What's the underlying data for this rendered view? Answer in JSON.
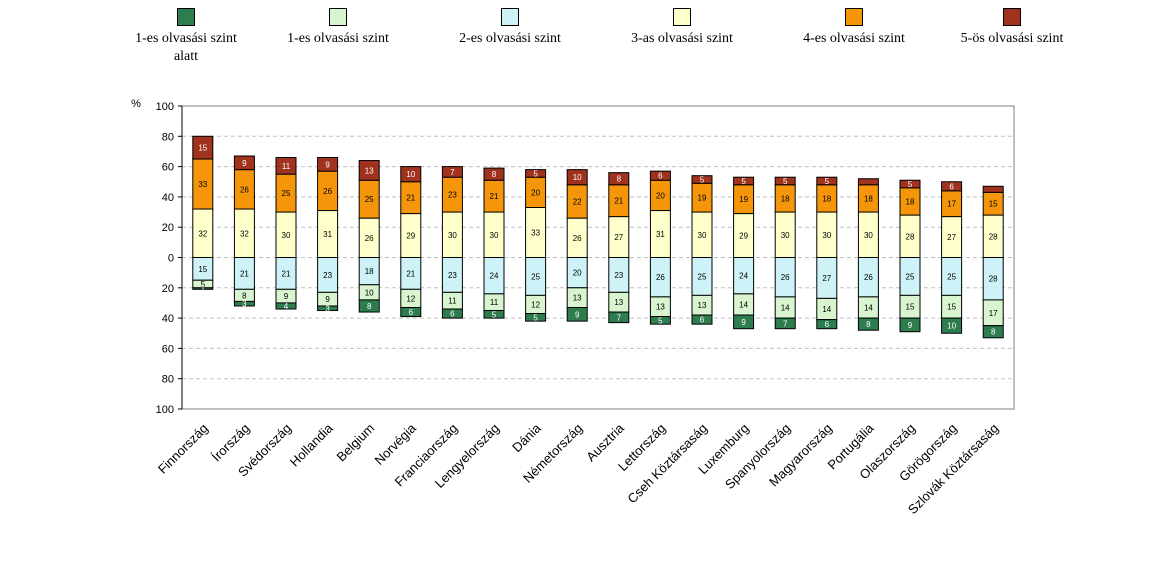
{
  "chart_data": {
    "type": "bar",
    "stacking": "diverging",
    "yunit": "%",
    "ylim": [
      -100,
      100
    ],
    "yticks": [
      -100,
      -80,
      -60,
      -40,
      -20,
      0,
      20,
      40,
      60,
      80,
      100
    ],
    "ytick_labels": [
      "100",
      "80",
      "60",
      "40",
      "20",
      "0",
      "20",
      "40",
      "60",
      "80",
      "100"
    ],
    "grid": true,
    "legend_position": "top",
    "categories": [
      "Finnország",
      "Írország",
      "Svédország",
      "Hollandia",
      "Belgium",
      "Norvégia",
      "Franciaország",
      "Lengyelország",
      "Dánia",
      "Németország",
      "Ausztria",
      "Lettország",
      "Cseh Köztársaság",
      "Luxemburg",
      "Spanyolország",
      "Magyarország",
      "Portugália",
      "Olaszország",
      "Görögország",
      "Szlovák Köztársaság"
    ],
    "series": [
      {
        "name": "1-es olvasási szint alatt",
        "color": "#2e7d4f",
        "direction": "down",
        "values": [
          1,
          3,
          4,
          3,
          8,
          6,
          6,
          5,
          5,
          9,
          7,
          5,
          6,
          9,
          7,
          6,
          8,
          9,
          10,
          8
        ]
      },
      {
        "name": "1-es olvasási szint",
        "color": "#d8f5d0",
        "direction": "down",
        "values": [
          5,
          8,
          9,
          9,
          10,
          12,
          11,
          11,
          12,
          13,
          13,
          13,
          13,
          14,
          14,
          14,
          14,
          15,
          15,
          17
        ]
      },
      {
        "name": "2-es olvasási szint",
        "color": "#cdf3f8",
        "direction": "down",
        "values": [
          15,
          21,
          21,
          23,
          18,
          21,
          23,
          24,
          25,
          20,
          23,
          26,
          25,
          24,
          26,
          27,
          26,
          25,
          25,
          28
        ]
      },
      {
        "name": "3-as olvasási szint",
        "color": "#ffffcc",
        "direction": "up",
        "values": [
          32,
          32,
          30,
          31,
          26,
          29,
          30,
          30,
          33,
          26,
          27,
          31,
          30,
          29,
          30,
          30,
          30,
          28,
          27,
          28
        ]
      },
      {
        "name": "4-es olvasási szint",
        "color": "#f5960a",
        "direction": "up",
        "values": [
          33,
          26,
          25,
          26,
          25,
          21,
          23,
          21,
          20,
          22,
          21,
          20,
          19,
          19,
          18,
          18,
          18,
          18,
          17,
          15
        ]
      },
      {
        "name": "5-ös olvasási szint",
        "color": "#a0321e",
        "direction": "up",
        "values": [
          15,
          9,
          11,
          9,
          13,
          10,
          7,
          8,
          5,
          10,
          8,
          6,
          5,
          5,
          5,
          5,
          4,
          5,
          6,
          4
        ]
      }
    ],
    "value_labels_shown": [
      [
        true,
        true,
        true,
        true,
        true,
        true,
        true,
        true,
        true,
        true,
        true,
        true,
        true,
        true,
        true,
        true,
        true,
        true,
        true,
        true
      ],
      [
        true,
        true,
        true,
        true,
        true,
        true,
        true,
        true,
        true,
        true,
        true,
        true,
        true,
        true,
        true,
        true,
        true,
        true,
        true,
        true
      ],
      [
        true,
        true,
        true,
        true,
        true,
        true,
        true,
        true,
        true,
        true,
        true,
        true,
        true,
        true,
        true,
        true,
        true,
        true,
        true,
        true
      ],
      [
        true,
        true,
        true,
        true,
        true,
        true,
        true,
        true,
        true,
        true,
        true,
        true,
        true,
        true,
        true,
        true,
        true,
        true,
        true,
        true
      ],
      [
        true,
        true,
        true,
        true,
        true,
        true,
        true,
        true,
        true,
        true,
        true,
        true,
        true,
        true,
        true,
        true,
        true,
        true,
        true,
        true
      ],
      [
        true,
        true,
        true,
        true,
        true,
        true,
        true,
        true,
        true,
        true,
        true,
        true,
        true,
        true,
        true,
        true,
        false,
        true,
        true,
        false
      ]
    ]
  }
}
